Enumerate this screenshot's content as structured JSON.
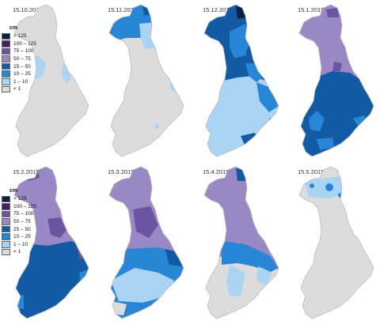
{
  "legend_top": {
    "unit": "cm",
    "classes": [
      {
        "label": "> 125",
        "color": "#0d1f47"
      },
      {
        "label": "100 – 125",
        "color": "#4b1d63"
      },
      {
        "label": "75 – 100",
        "color": "#6b55a3"
      },
      {
        "label": "50 – 75",
        "color": "#9988c4"
      },
      {
        "label": "25 – 50",
        "color": "#135aa5"
      },
      {
        "label": "10 – 25",
        "color": "#2886d6"
      },
      {
        "label": "1 – 10",
        "color": "#a9d4f4"
      },
      {
        "label": "< 1",
        "color": "#dcdcdc"
      }
    ]
  },
  "legend_bottom": {
    "unit": "cm",
    "classes": [
      {
        "label": "> 125",
        "color": "#0d1f47"
      },
      {
        "label": "100 – 125",
        "color": "#4b1d63"
      },
      {
        "label": "75 – 100",
        "color": "#6b55a3"
      },
      {
        "label": "50 – 75",
        "color": "#9988c4"
      },
      {
        "label": "25 – 50",
        "color": "#135aa5"
      },
      {
        "label": "10 – 25",
        "color": "#2886d6"
      },
      {
        "label": "1 – 10",
        "color": "#a9d4f4"
      },
      {
        "label": "< 1",
        "color": "#dcdcdc"
      }
    ]
  },
  "panels": [
    {
      "date": "15.10.2014",
      "base": "#dcdcdc",
      "dominant_class": "< 1"
    },
    {
      "date": "15.11.2014",
      "base": "#dcdcdc",
      "dominant_class": "< 1"
    },
    {
      "date": "15.12.2014",
      "base": "#135aa5",
      "dominant_class": "25 – 50"
    },
    {
      "date": "15.1.2015",
      "base": "#9988c4",
      "dominant_class": "50 – 75"
    },
    {
      "date": "15.2.2015",
      "base": "#9988c4",
      "dominant_class": "50 – 75"
    },
    {
      "date": "15.3.2015",
      "base": "#9988c4",
      "dominant_class": "50 – 75"
    },
    {
      "date": "15.4.2015",
      "base": "#9988c4",
      "dominant_class": "50 – 75"
    },
    {
      "date": "15.5.2015",
      "base": "#dcdcdc",
      "dominant_class": "< 1"
    }
  ]
}
